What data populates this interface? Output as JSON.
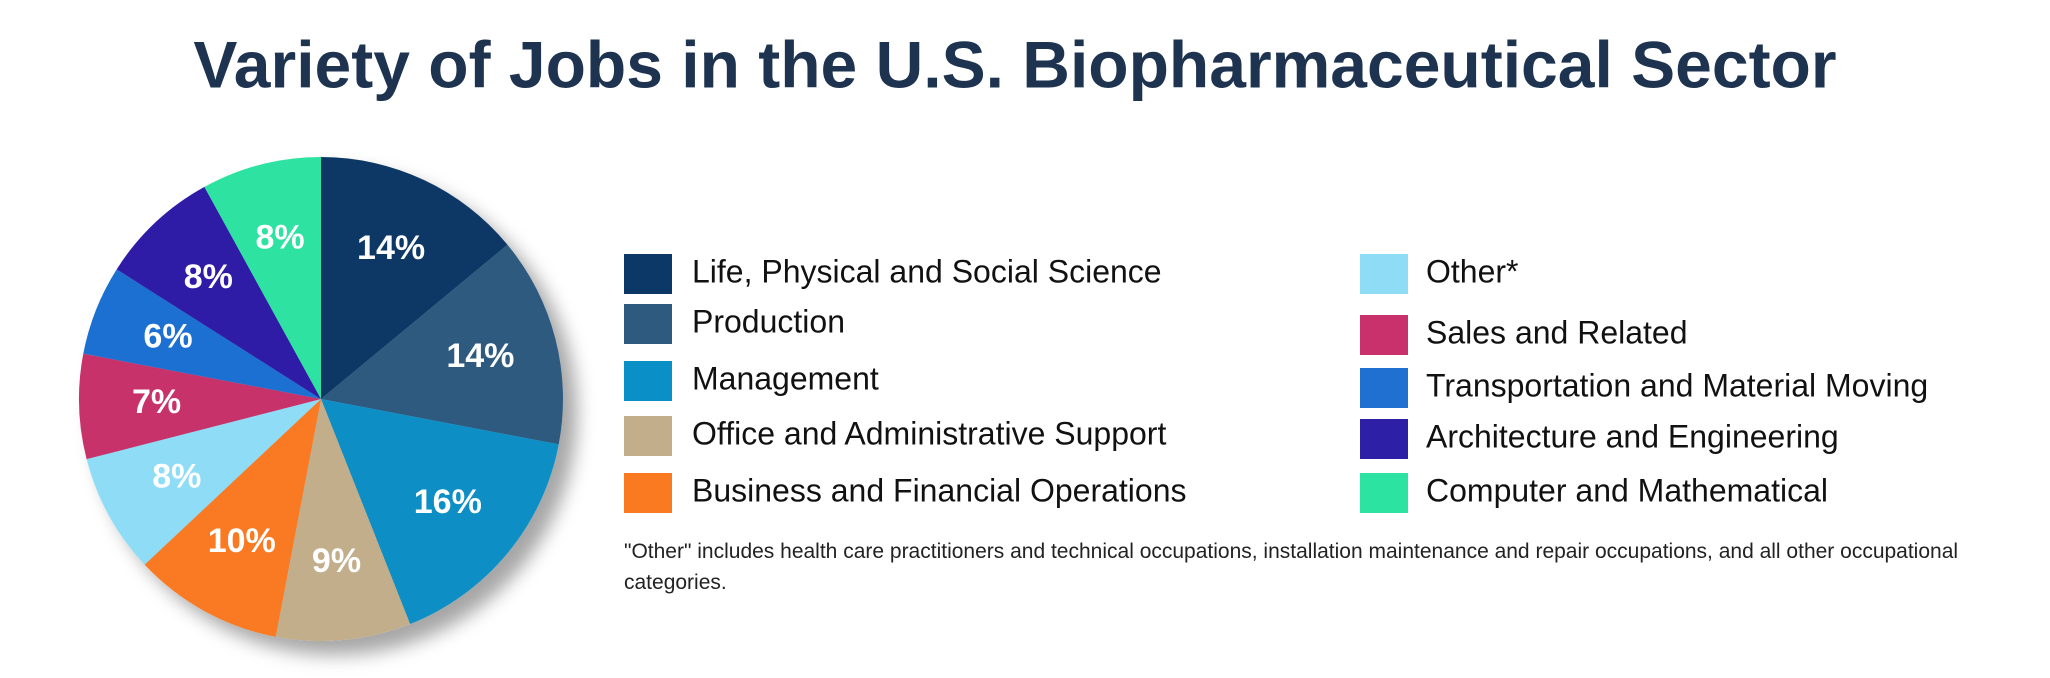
{
  "chart_data": {
    "type": "pie",
    "title": "Variety of Jobs in the U.S. Biopharmaceutical Sector",
    "categories": [
      "Life, Physical and Social Science",
      "Production",
      "Management",
      "Office and Administrative Support",
      "Business and Financial Operations",
      "Other*",
      "Sales and Related",
      "Transportation and Material Moving",
      "Architecture and Engineering",
      "Computer and Mathematical"
    ],
    "values": [
      14,
      14,
      16,
      9,
      10,
      8,
      7,
      6,
      8,
      8
    ],
    "value_labels": [
      "14%",
      "14%",
      "16%",
      "9%",
      "10%",
      "8%",
      "7%",
      "6%",
      "8%",
      "8%"
    ],
    "colors": [
      "#0b3866",
      "#2e5a80",
      "#0a8fc6",
      "#c3ae8b",
      "#f97a21",
      "#8fdcf7",
      "#c8316b",
      "#1f70d1",
      "#2e1fa7",
      "#2de3a1"
    ],
    "footnote": "\"Other\" includes health care practitioners and technical occupations, installation maintenance and repair occupations, and all other occupational categories."
  }
}
